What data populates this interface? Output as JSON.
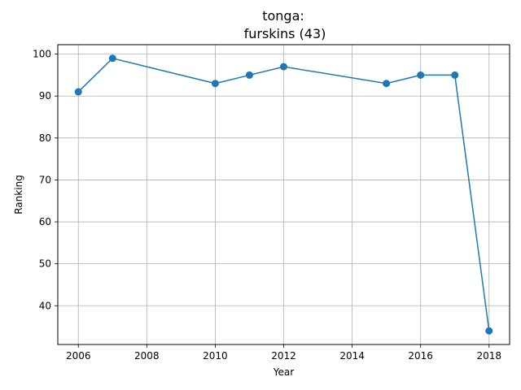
{
  "chart_data": {
    "type": "line",
    "title_line1": "tonga:",
    "title_line2": "furskins (43)",
    "xlabel": "Year",
    "ylabel": "Ranking",
    "x": [
      2006,
      2007,
      2010,
      2011,
      2012,
      2015,
      2016,
      2017,
      2018
    ],
    "y": [
      91,
      99,
      93,
      95,
      97,
      93,
      95,
      95,
      34
    ],
    "xlim": [
      2005.4,
      2018.6
    ],
    "ylim": [
      30.75,
      102.25
    ],
    "xticks": [
      2006,
      2008,
      2010,
      2012,
      2014,
      2016,
      2018
    ],
    "yticks": [
      40,
      50,
      60,
      70,
      80,
      90,
      100
    ],
    "grid": true,
    "line_color": "#1f77b4",
    "marker": "circle"
  }
}
